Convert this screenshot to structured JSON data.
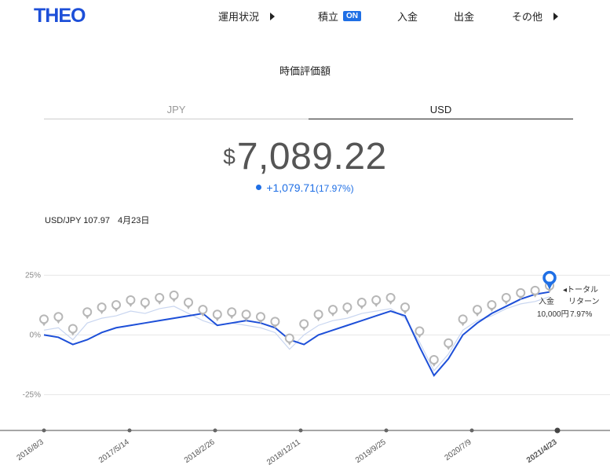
{
  "header": {
    "logo": "THEO",
    "nav": [
      {
        "label": "運用状況",
        "has_arrow": true
      },
      {
        "label": "積立",
        "badge": "ON"
      },
      {
        "label": "入金"
      },
      {
        "label": "出金"
      },
      {
        "label": "その他",
        "has_arrow": true
      }
    ]
  },
  "summary": {
    "title": "時価評価額",
    "tabs": [
      {
        "label": "JPY",
        "active": false
      },
      {
        "label": "USD",
        "active": true
      }
    ],
    "currency_symbol": "$",
    "value": "7,089.22",
    "change": "+1,079.71",
    "change_pct": "(17.97%)",
    "fx_rate": "USD/JPY 107.97",
    "fx_date": "4月23日"
  },
  "colors": {
    "accent": "#1f6fe5",
    "line": "#1d4fd8",
    "faint_line": "#c9d6f0",
    "marker": "#b7b7b7"
  },
  "chart_data": {
    "type": "line",
    "y_ticks": [
      "25%",
      "0%",
      "-25%"
    ],
    "ylim": [
      -40,
      35
    ],
    "x_ticks": [
      "2016/8/3",
      "2017/5/14",
      "2018/2/26",
      "2018/12/11",
      "2019/9/25",
      "2020/7/9",
      "2021/4/23"
    ],
    "selected_x": "2021/4/23",
    "series": [
      {
        "values": [
          0,
          -1,
          -4,
          -2,
          1,
          3,
          4,
          5,
          6,
          7,
          8,
          9,
          4,
          5,
          6,
          5,
          3,
          -2,
          -4,
          0,
          2,
          4,
          6,
          8,
          10,
          8,
          -5,
          -17,
          -10,
          0,
          5,
          9,
          12,
          15,
          17,
          18
        ]
      },
      {
        "values": [
          2,
          3,
          -2,
          5,
          7,
          8,
          10,
          9,
          11,
          12,
          9,
          6,
          4,
          5,
          4,
          3,
          1,
          -6,
          0,
          4,
          6,
          7,
          9,
          10,
          11,
          7,
          -3,
          -15,
          -8,
          2,
          6,
          8,
          11,
          13,
          14,
          16
        ]
      }
    ],
    "annotations": {
      "total_label": "◂トータル",
      "deposit_label": "入金",
      "return_label": "リターン",
      "deposit_value": "10,000円",
      "return_value": "7.97%"
    }
  }
}
